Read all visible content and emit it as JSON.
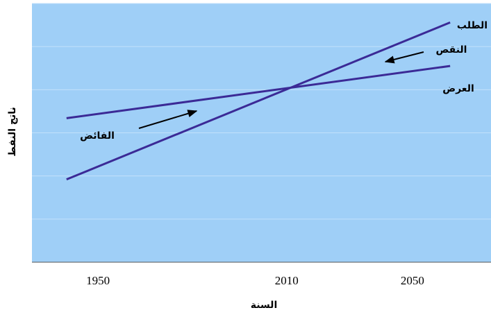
{
  "chart_data": {
    "type": "line",
    "x_label": "السنة",
    "y_label": "ناتج النفط",
    "x": [
      1940,
      2062
    ],
    "series": [
      {
        "name": "الطلب",
        "color": "#3b2a96",
        "values": [
          1.92,
          5.56
        ]
      },
      {
        "name": "العرض",
        "color": "#3b2a96",
        "values": [
          3.34,
          4.55
        ]
      }
    ],
    "annotations": [
      "النقص",
      "الفائض"
    ],
    "xlim": [
      1929,
      2075
    ],
    "xticks": [
      1950,
      2010,
      2050
    ],
    "ylim": [
      0,
      6
    ],
    "ygrid": [
      1,
      2,
      3,
      4,
      5,
      6
    ],
    "plot_color": "#9fcff7"
  }
}
